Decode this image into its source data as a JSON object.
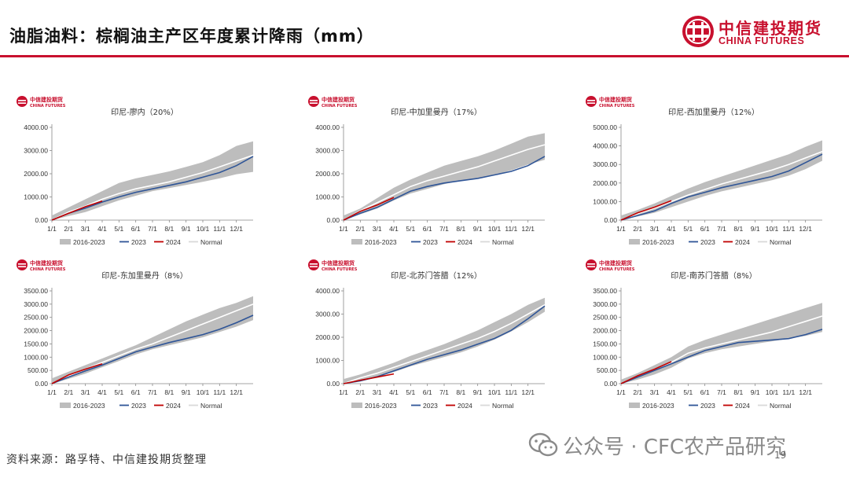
{
  "page": {
    "title": "油脂油料：棕榈油主产区年度累计降雨（mm）",
    "brand_cn": "中信建投期货",
    "brand_en": "CHINA FUTURES",
    "source": "资料来源：路孚特、中信建投期货整理",
    "watermark": "公众号 · CFC农产品研究",
    "page_number": "19"
  },
  "colors": {
    "band": "#bdbdbd",
    "y2023": "#2f5597",
    "y2024": "#c00000",
    "normal": "#ffffff",
    "brand": "#c8102e"
  },
  "chart_data": [
    {
      "type": "line",
      "title": "印尼-廖内（20%）",
      "xlabel": "",
      "ylabel": "",
      "x_ticks": [
        "1/1",
        "2/1",
        "3/1",
        "4/1",
        "5/1",
        "6/1",
        "7/1",
        "8/1",
        "9/1",
        "10/1",
        "11/1",
        "12/1"
      ],
      "ylim": [
        0,
        4000
      ],
      "y_ticks": [
        "0.00",
        "1000.00",
        "2000.00",
        "3000.00",
        "4000.00"
      ],
      "legend": [
        "2016-2023",
        "2023",
        "2024",
        "Normal"
      ],
      "band_low": [
        0,
        180,
        350,
        600,
        850,
        1050,
        1250,
        1380,
        1520,
        1650,
        1800,
        1980,
        2080
      ],
      "band_high": [
        200,
        550,
        900,
        1250,
        1600,
        1800,
        1950,
        2100,
        2300,
        2500,
        2800,
        3200,
        3400
      ],
      "normal": [
        0,
        350,
        600,
        900,
        1150,
        1350,
        1500,
        1650,
        1850,
        2050,
        2300,
        2550,
        2800
      ],
      "series_2023": [
        0,
        300,
        520,
        780,
        1000,
        1200,
        1350,
        1500,
        1650,
        1850,
        2050,
        2350,
        2750
      ],
      "series_2024": [
        0,
        300,
        580,
        820
      ]
    },
    {
      "type": "line",
      "title": "印尼-中加里曼丹（17%）",
      "xlabel": "",
      "ylabel": "",
      "x_ticks": [
        "1/1",
        "2/1",
        "3/1",
        "4/1",
        "5/1",
        "6/1",
        "7/1",
        "8/1",
        "9/1",
        "10/1",
        "11/1",
        "12/1"
      ],
      "ylim": [
        0,
        4000
      ],
      "y_ticks": [
        "0.00",
        "1000.00",
        "2000.00",
        "3000.00",
        "4000.00"
      ],
      "legend": [
        "2016-2023",
        "2023",
        "2024",
        "Normal"
      ],
      "band_low": [
        0,
        250,
        500,
        850,
        1150,
        1350,
        1550,
        1700,
        1800,
        1950,
        2150,
        2400,
        2600
      ],
      "band_high": [
        200,
        500,
        950,
        1400,
        1750,
        2050,
        2350,
        2550,
        2750,
        3000,
        3300,
        3600,
        3750
      ],
      "normal": [
        0,
        400,
        750,
        1100,
        1450,
        1700,
        1900,
        2100,
        2300,
        2550,
        2800,
        3050,
        3250
      ],
      "series_2023": [
        0,
        300,
        550,
        900,
        1250,
        1450,
        1600,
        1700,
        1800,
        1950,
        2100,
        2350,
        2750
      ],
      "series_2024": [
        0,
        380,
        650,
        980
      ]
    },
    {
      "type": "line",
      "title": "印尼-西加里曼丹（12%）",
      "xlabel": "",
      "ylabel": "",
      "x_ticks": [
        "1/1",
        "2/1",
        "3/1",
        "4/1",
        "5/1",
        "6/1",
        "7/1",
        "8/1",
        "9/1",
        "10/1",
        "11/1",
        "12/1"
      ],
      "ylim": [
        0,
        5000
      ],
      "y_ticks": [
        "0.00",
        "1000.00",
        "2000.00",
        "3000.00",
        "4000.00",
        "5000.00"
      ],
      "legend": [
        "2016-2023",
        "2023",
        "2024",
        "Normal"
      ],
      "band_low": [
        0,
        200,
        400,
        700,
        1000,
        1300,
        1550,
        1750,
        1950,
        2150,
        2400,
        2750,
        3200
      ],
      "band_high": [
        250,
        550,
        900,
        1300,
        1700,
        2050,
        2350,
        2650,
        2950,
        3250,
        3550,
        3950,
        4300
      ],
      "normal": [
        0,
        350,
        650,
        1000,
        1350,
        1650,
        1950,
        2200,
        2450,
        2700,
        3000,
        3350,
        3700
      ],
      "series_2023": [
        0,
        250,
        500,
        900,
        1250,
        1500,
        1750,
        1950,
        2150,
        2350,
        2650,
        3100,
        3550
      ],
      "series_2024": [
        0,
        400,
        700,
        1050
      ]
    },
    {
      "type": "line",
      "title": "印尼-东加里曼丹（8%）",
      "xlabel": "",
      "ylabel": "",
      "x_ticks": [
        "1/1",
        "2/1",
        "3/1",
        "4/1",
        "5/1",
        "6/1",
        "7/1",
        "8/1",
        "9/1",
        "10/1",
        "11/1",
        "12/1"
      ],
      "ylim": [
        0,
        3500
      ],
      "y_ticks": [
        "0.00",
        "500.00",
        "1000.00",
        "1500.00",
        "2000.00",
        "2500.00",
        "3000.00",
        "3500.00"
      ],
      "legend": [
        "2016-2023",
        "2023",
        "2024",
        "Normal"
      ],
      "band_low": [
        0,
        180,
        380,
        620,
        850,
        1100,
        1300,
        1450,
        1600,
        1750,
        1950,
        2150,
        2400
      ],
      "band_high": [
        200,
        450,
        700,
        950,
        1200,
        1450,
        1750,
        2050,
        2350,
        2600,
        2850,
        3050,
        3300
      ],
      "normal": [
        0,
        300,
        550,
        800,
        1050,
        1300,
        1500,
        1750,
        2000,
        2250,
        2500,
        2750,
        3000
      ],
      "series_2023": [
        0,
        250,
        480,
        700,
        950,
        1200,
        1380,
        1550,
        1700,
        1850,
        2050,
        2300,
        2580
      ],
      "series_2024": [
        0,
        330,
        550,
        750
      ]
    },
    {
      "type": "line",
      "title": "印尼-北苏门答腊（12%）",
      "xlabel": "",
      "ylabel": "",
      "x_ticks": [
        "1/1",
        "2/1",
        "3/1",
        "4/1",
        "5/1",
        "6/1",
        "7/1",
        "8/1",
        "9/1",
        "10/1",
        "11/1",
        "12/1"
      ],
      "ylim": [
        0,
        4000
      ],
      "y_ticks": [
        "0.00",
        "1000.00",
        "2000.00",
        "3000.00",
        "4000.00"
      ],
      "legend": [
        "2016-2023",
        "2023",
        "2024",
        "Normal"
      ],
      "band_low": [
        0,
        150,
        300,
        500,
        750,
        950,
        1150,
        1350,
        1600,
        1900,
        2250,
        2650,
        3100
      ],
      "band_high": [
        200,
        400,
        650,
        900,
        1200,
        1450,
        1700,
        2000,
        2300,
        2650,
        3000,
        3400,
        3700
      ],
      "normal": [
        0,
        250,
        450,
        700,
        950,
        1200,
        1450,
        1700,
        1950,
        2250,
        2600,
        3000,
        3400
      ],
      "series_2023": [
        0,
        120,
        300,
        550,
        800,
        1050,
        1250,
        1450,
        1700,
        1950,
        2300,
        2800,
        3350
      ],
      "series_2024": [
        0,
        150,
        280,
        420
      ]
    },
    {
      "type": "line",
      "title": "印尼-南苏门答腊（8%）",
      "xlabel": "",
      "ylabel": "",
      "x_ticks": [
        "1/1",
        "2/1",
        "3/1",
        "4/1",
        "5/1",
        "6/1",
        "7/1",
        "8/1",
        "9/1",
        "10/1",
        "11/1",
        "12/1"
      ],
      "ylim": [
        0,
        3500
      ],
      "y_ticks": [
        "0.00",
        "500.00",
        "1000.00",
        "1500.00",
        "2000.00",
        "2500.00",
        "3000.00",
        "3500.00"
      ],
      "legend": [
        "2016-2023",
        "2023",
        "2024",
        "Normal"
      ],
      "band_low": [
        0,
        150,
        350,
        600,
        950,
        1150,
        1300,
        1400,
        1500,
        1600,
        1700,
        1800,
        1950
      ],
      "band_high": [
        150,
        400,
        700,
        1000,
        1400,
        1650,
        1850,
        2050,
        2250,
        2450,
        2650,
        2850,
        3050
      ],
      "normal": [
        0,
        300,
        550,
        800,
        1150,
        1350,
        1500,
        1650,
        1800,
        1950,
        2150,
        2350,
        2550
      ],
      "series_2023": [
        0,
        250,
        500,
        750,
        1000,
        1250,
        1400,
        1550,
        1600,
        1650,
        1700,
        1850,
        2050
      ],
      "series_2024": [
        0,
        300,
        550,
        830
      ]
    }
  ]
}
